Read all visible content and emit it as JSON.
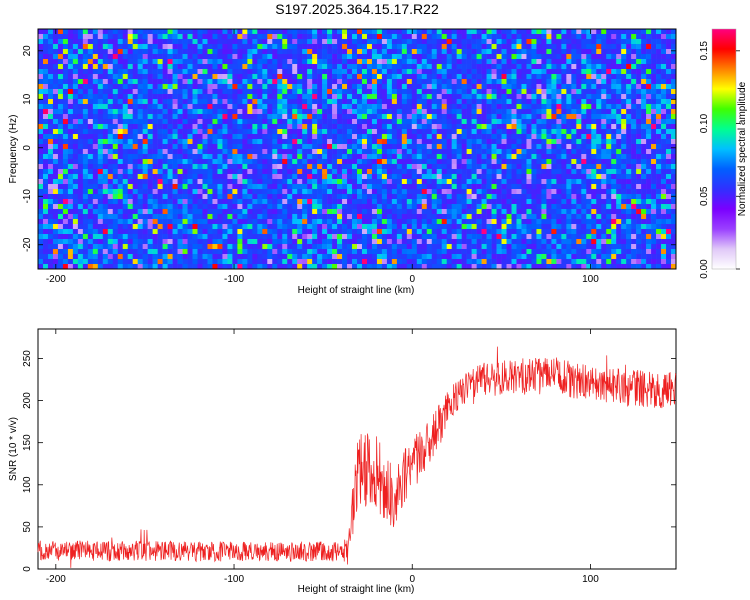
{
  "title": "S197.2025.364.15.17.R22",
  "chart_data": [
    {
      "type": "heatmap",
      "panel": "spectrogram",
      "xlabel": "Height of straight line (km)",
      "ylabel": "Frequency (Hz)",
      "xlim": [
        -210,
        148
      ],
      "ylim": [
        -25,
        24.5
      ],
      "xticks": [
        -200,
        -100,
        0,
        100
      ],
      "xtick_labels": [
        "-200",
        "-100",
        "0",
        "100"
      ],
      "yticks": [
        -20,
        -10,
        0,
        10,
        20
      ],
      "ytick_labels": [
        "-20",
        "-10",
        "0",
        "10",
        "20"
      ],
      "colorbar": {
        "label": "Normalized spectral amplitude",
        "range": [
          0.0,
          0.165
        ],
        "ticks": [
          0.0,
          0.05,
          0.1,
          0.15
        ],
        "tick_labels": [
          "0.00",
          "0.05",
          "0.10",
          "0.15"
        ],
        "colormap": [
          "#ffffff",
          "#e0c8f8",
          "#9a40ff",
          "#7a00ff",
          "#3030ff",
          "#0060ff",
          "#00c0ff",
          "#00ff90",
          "#40ff00",
          "#ffff00",
          "#ff8000",
          "#ff0000",
          "#ff0080"
        ]
      },
      "description_values": "noise-like field; amplitudes mostly 0.01-0.06 with isolated peaks up to ~0.15"
    },
    {
      "type": "line",
      "panel": "snr",
      "xlabel": "Height of straight line (km)",
      "ylabel": "SNR (10 * v/v)",
      "xlim": [
        -210,
        148
      ],
      "ylim": [
        0,
        285
      ],
      "xticks": [
        -200,
        -100,
        0,
        100
      ],
      "xtick_labels": [
        "-200",
        "-100",
        "0",
        "100"
      ],
      "yticks": [
        0,
        50,
        100,
        150,
        200,
        250
      ],
      "ytick_labels": [
        "0",
        "50",
        "100",
        "150",
        "200",
        "250"
      ],
      "series": [
        {
          "name": "SNR",
          "color": "#ee2020",
          "x": [
            -210,
            -190,
            -150,
            -110,
            -70,
            -40,
            -36,
            -33,
            -30,
            -25,
            -20,
            -15,
            -10,
            -5,
            0,
            5,
            10,
            15,
            20,
            25,
            30,
            40,
            60,
            80,
            100,
            120,
            148
          ],
          "y": [
            22,
            22,
            21,
            21,
            21,
            21,
            22,
            80,
            110,
            125,
            115,
            95,
            80,
            105,
            125,
            135,
            150,
            170,
            190,
            205,
            215,
            225,
            228,
            230,
            220,
            215,
            212
          ],
          "noise_amplitude": [
            12,
            12,
            12,
            12,
            12,
            12,
            20,
            40,
            50,
            50,
            45,
            40,
            40,
            35,
            35,
            30,
            28,
            25,
            22,
            20,
            20,
            20,
            22,
            22,
            22,
            22,
            22
          ]
        }
      ]
    }
  ]
}
